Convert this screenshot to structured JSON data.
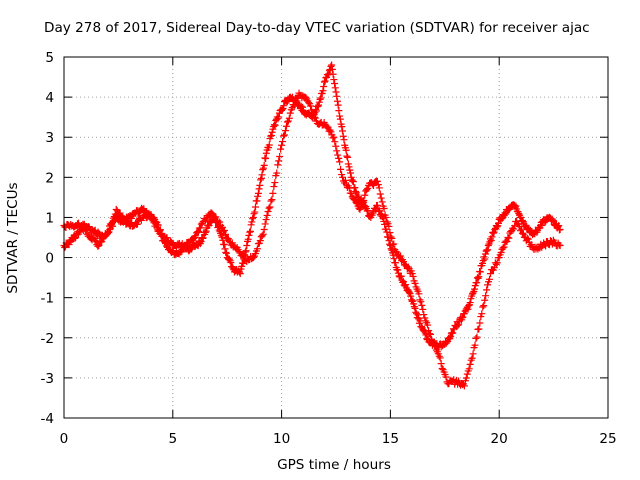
{
  "chart_data": {
    "type": "scatter",
    "title": "Day 278 of 2017, Sidereal Day-to-day VTEC variation (SDTVAR) for receiver ajac",
    "xlabel": "GPS time / hours",
    "ylabel": "SDTVAR / TECUs",
    "xlim": [
      0,
      25
    ],
    "ylim": [
      -4,
      5
    ],
    "xticks": [
      0,
      5,
      10,
      15,
      20,
      25
    ],
    "yticks": [
      -4,
      -3,
      -2,
      -1,
      0,
      1,
      2,
      3,
      4,
      5
    ],
    "grid": true,
    "marker": "+",
    "series": [
      {
        "name": "SDTVAR",
        "color": "#ff0000",
        "x": [
          0.0,
          0.3,
          0.6,
          0.9,
          1.2,
          1.5,
          1.8,
          2.1,
          2.4,
          2.7,
          3.0,
          3.3,
          3.6,
          3.9,
          4.2,
          4.5,
          4.8,
          5.1,
          5.4,
          5.7,
          6.0,
          6.3,
          6.6,
          6.9,
          7.2,
          7.5,
          7.8,
          8.1,
          8.4,
          8.7,
          9.0,
          9.3,
          9.6,
          9.9,
          10.2,
          10.5,
          10.8,
          11.1,
          11.4,
          11.7,
          12.0,
          12.3,
          12.6,
          12.9,
          13.2,
          13.5,
          13.8,
          14.1,
          14.4,
          14.7,
          15.0,
          15.3,
          15.6,
          15.9,
          16.2,
          16.5,
          16.8,
          17.1,
          17.4,
          17.7,
          18.0,
          18.3,
          18.6,
          18.9,
          19.2,
          19.5,
          19.8,
          20.1,
          20.4,
          20.7,
          21.0,
          21.3,
          21.6,
          21.9,
          22.2,
          22.5,
          22.8
        ],
        "y": [
          0.3,
          0.4,
          0.6,
          0.8,
          0.7,
          0.6,
          0.5,
          0.7,
          1.0,
          0.9,
          1.0,
          1.1,
          1.2,
          1.1,
          0.9,
          0.6,
          0.4,
          0.3,
          0.3,
          0.2,
          0.3,
          0.4,
          0.8,
          1.0,
          0.6,
          0.0,
          -0.3,
          -0.4,
          0.3,
          1.0,
          1.8,
          2.6,
          3.2,
          3.6,
          3.9,
          4.0,
          3.8,
          3.6,
          3.5,
          3.8,
          4.4,
          4.8,
          3.8,
          2.8,
          2.0,
          1.5,
          1.3,
          1.0,
          1.3,
          0.9,
          0.3,
          -0.3,
          -0.6,
          -0.9,
          -1.4,
          -1.8,
          -2.1,
          -2.2,
          -2.2,
          -2.0,
          -1.7,
          -1.5,
          -1.2,
          -0.7,
          -0.2,
          0.3,
          0.7,
          1.0,
          1.2,
          1.3,
          1.0,
          0.7,
          0.6,
          0.8,
          1.0,
          0.9,
          0.7
        ]
      },
      {
        "name": "SDTVAR",
        "color": "#ff0000",
        "x": [
          0.0,
          0.4,
          0.8,
          1.2,
          1.6,
          2.0,
          2.4,
          2.8,
          3.2,
          3.6,
          4.0,
          4.4,
          4.8,
          5.2,
          5.6,
          6.0,
          6.4,
          6.8,
          7.2,
          7.6,
          8.0,
          8.4,
          8.8,
          9.2,
          9.6,
          10.0,
          10.4,
          10.8,
          11.2,
          11.6,
          12.0,
          12.4,
          12.8,
          13.2,
          13.6,
          14.0,
          14.4,
          14.8,
          15.2,
          15.6,
          16.0,
          16.4,
          16.8,
          17.2,
          17.6,
          18.0,
          18.4,
          18.8,
          19.2,
          19.6,
          20.0,
          20.4,
          20.8,
          21.2,
          21.6,
          22.0,
          22.4,
          22.8
        ],
        "y": [
          0.8,
          0.8,
          0.8,
          0.5,
          0.3,
          0.6,
          1.2,
          0.9,
          0.8,
          1.0,
          1.0,
          0.6,
          0.2,
          0.1,
          0.3,
          0.5,
          0.9,
          1.1,
          0.8,
          0.4,
          0.2,
          -0.1,
          0.1,
          0.7,
          1.6,
          2.8,
          3.6,
          4.1,
          3.9,
          3.4,
          3.3,
          3.0,
          2.0,
          1.6,
          1.2,
          1.8,
          1.9,
          1.0,
          0.2,
          -0.1,
          -0.4,
          -1.1,
          -1.9,
          -2.4,
          -3.1,
          -3.1,
          -3.2,
          -2.4,
          -1.4,
          -0.4,
          0.0,
          0.5,
          0.9,
          0.5,
          0.2,
          0.3,
          0.4,
          0.3
        ]
      }
    ]
  }
}
